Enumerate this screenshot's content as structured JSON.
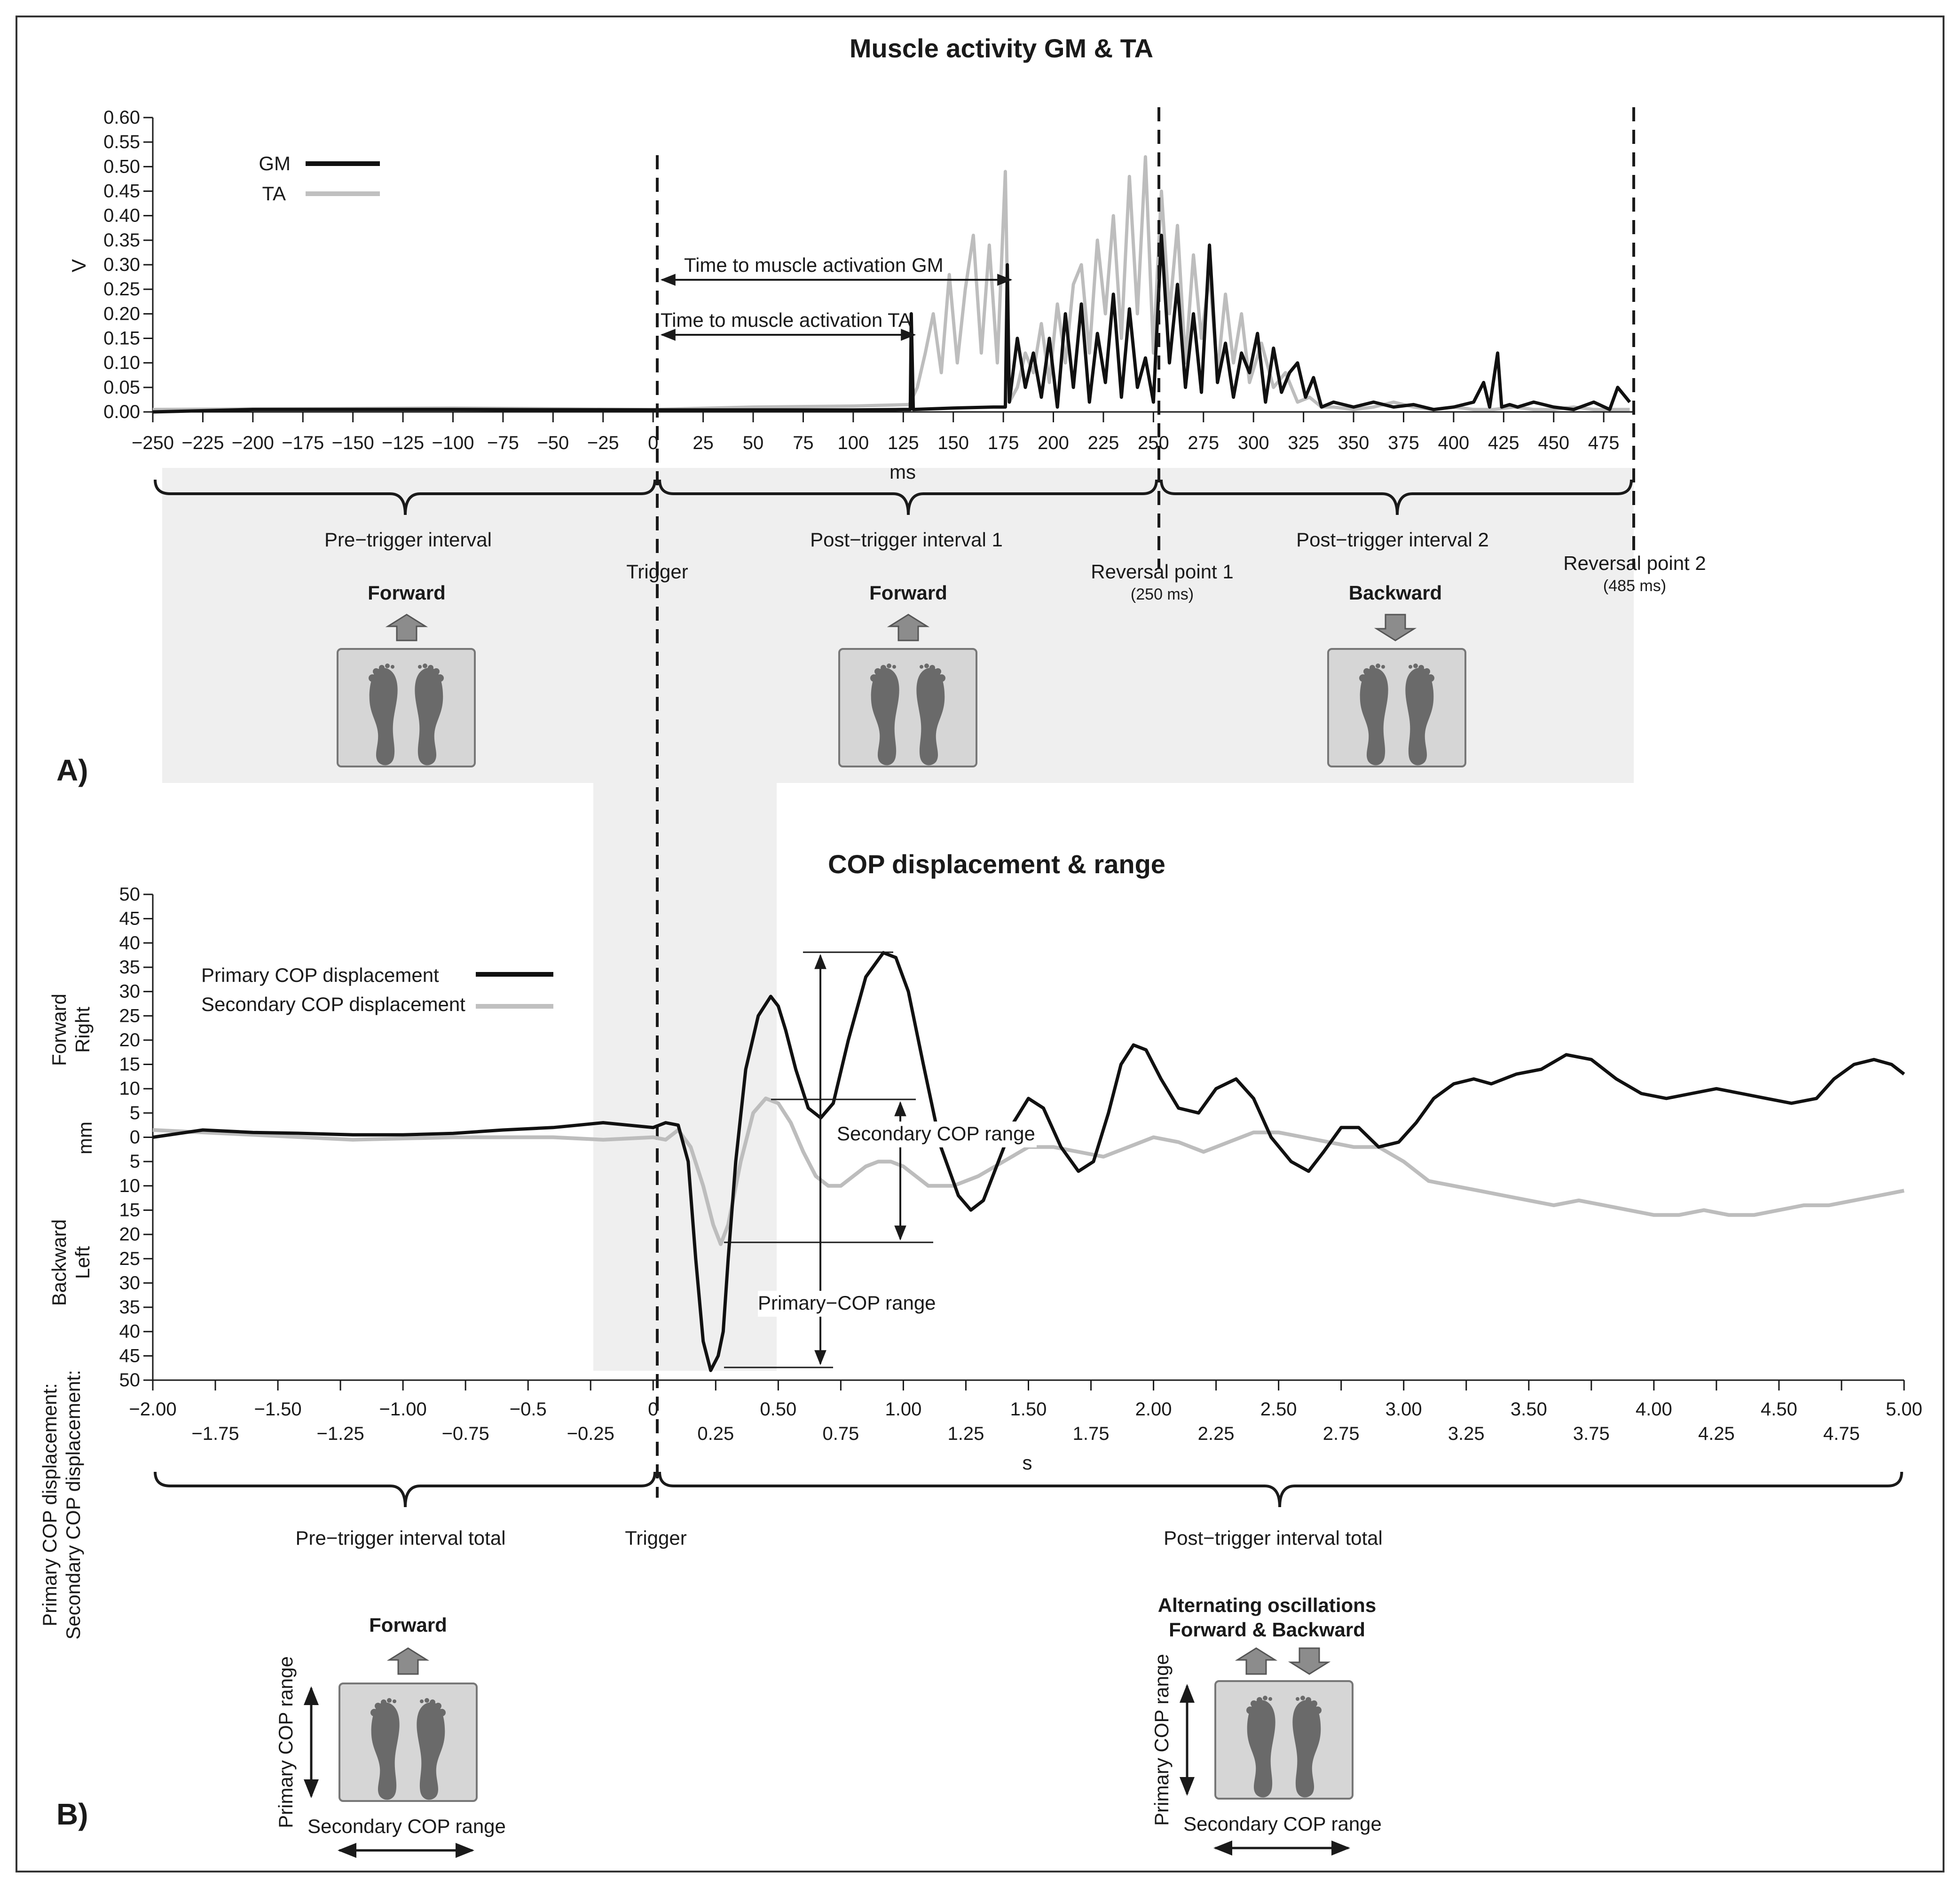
{
  "figure": {
    "panel_a_label": "A)",
    "panel_b_label": "B)"
  },
  "chart_data": [
    {
      "type": "line",
      "title": "Muscle activity GM & TA",
      "xlabel": "ms",
      "ylabel": "V",
      "xlim": [
        -250,
        490
      ],
      "ylim": [
        0,
        0.6
      ],
      "x_ticks": [
        "−250",
        "−225",
        "−200",
        "−175",
        "−150",
        "−125",
        "−100",
        "−75",
        "−50",
        "−25",
        "0",
        "25",
        "50",
        "75",
        "100",
        "125",
        "150",
        "175",
        "200",
        "225",
        "250",
        "275",
        "300",
        "325",
        "350",
        "375",
        "400",
        "425",
        "450",
        "475"
      ],
      "y_ticks": [
        "0.00",
        "0.05",
        "0.10",
        "0.15",
        "0.20",
        "0.25",
        "0.30",
        "0.35",
        "0.40",
        "0.45",
        "0.50",
        "0.55",
        "0.60"
      ],
      "legend": [
        {
          "name": "GM",
          "color": "#111111"
        },
        {
          "name": "TA",
          "color": "#c0c0c0"
        }
      ],
      "series": [
        {
          "name": "TA",
          "x": [
            -250,
            -100,
            0,
            50,
            100,
            128,
            132,
            136,
            140,
            144,
            148,
            152,
            156,
            160,
            164,
            168,
            172,
            176,
            178,
            182,
            186,
            190,
            194,
            198,
            202,
            206,
            210,
            214,
            218,
            222,
            226,
            230,
            234,
            238,
            242,
            246,
            250,
            254,
            258,
            262,
            266,
            270,
            274,
            278,
            282,
            286,
            290,
            294,
            298,
            304,
            310,
            316,
            322,
            328,
            334,
            340,
            350,
            360,
            370,
            380,
            390,
            400,
            410,
            420,
            430,
            440,
            450,
            460,
            470,
            480,
            488
          ],
          "values": [
            0.005,
            0.008,
            0.005,
            0.01,
            0.012,
            0.015,
            0.05,
            0.12,
            0.2,
            0.08,
            0.28,
            0.1,
            0.25,
            0.36,
            0.12,
            0.34,
            0.1,
            0.49,
            0.02,
            0.05,
            0.12,
            0.08,
            0.18,
            0.06,
            0.22,
            0.1,
            0.26,
            0.3,
            0.12,
            0.35,
            0.2,
            0.4,
            0.15,
            0.48,
            0.2,
            0.52,
            0.12,
            0.45,
            0.2,
            0.38,
            0.1,
            0.32,
            0.15,
            0.28,
            0.08,
            0.24,
            0.1,
            0.2,
            0.06,
            0.14,
            0.05,
            0.08,
            0.02,
            0.03,
            0.01,
            0.01,
            0.005,
            0.01,
            0.02,
            0.01,
            0.005,
            0.01,
            0.005,
            0.005,
            0.01,
            0.005,
            0.005,
            0.01,
            0.005,
            0.005,
            0.005
          ]
        },
        {
          "name": "GM",
          "x": [
            -250,
            -200,
            -100,
            0,
            100,
            125,
            128.5,
            129,
            130,
            150,
            170,
            176,
            177,
            178,
            182,
            186,
            190,
            194,
            198,
            202,
            206,
            210,
            214,
            218,
            222,
            226,
            230,
            234,
            238,
            242,
            246,
            250,
            254,
            258,
            262,
            266,
            270,
            274,
            278,
            282,
            286,
            290,
            294,
            298,
            302,
            306,
            310,
            314,
            318,
            322,
            326,
            330,
            334,
            340,
            350,
            360,
            370,
            380,
            390,
            400,
            410,
            415,
            418,
            422,
            424,
            428,
            432,
            440,
            450,
            460,
            470,
            478,
            482,
            488
          ],
          "values": [
            0.0,
            0.005,
            0.005,
            0.004,
            0.004,
            0.005,
            0.005,
            0.2,
            0.005,
            0.008,
            0.01,
            0.01,
            0.3,
            0.02,
            0.15,
            0.05,
            0.12,
            0.03,
            0.15,
            0.01,
            0.2,
            0.05,
            0.22,
            0.02,
            0.16,
            0.06,
            0.24,
            0.03,
            0.21,
            0.05,
            0.11,
            0.02,
            0.36,
            0.1,
            0.26,
            0.05,
            0.2,
            0.04,
            0.34,
            0.06,
            0.14,
            0.03,
            0.12,
            0.08,
            0.16,
            0.02,
            0.13,
            0.04,
            0.08,
            0.1,
            0.03,
            0.07,
            0.01,
            0.02,
            0.01,
            0.02,
            0.01,
            0.015,
            0.005,
            0.01,
            0.02,
            0.06,
            0.01,
            0.12,
            0.01,
            0.015,
            0.01,
            0.02,
            0.01,
            0.005,
            0.02,
            0.005,
            0.05,
            0.02
          ]
        }
      ],
      "annotations": {
        "time_gm": "Time to muscle activation GM",
        "time_ta": "Time to muscle activation TA",
        "trigger": "Trigger",
        "intervals": [
          "Pre−trigger interval",
          "Post−trigger interval 1",
          "Post−trigger interval 2"
        ],
        "reversal1": "Reversal point 1",
        "reversal1_ms": "(250 ms)",
        "reversal2": "Reversal point 2",
        "reversal2_ms": "(485 ms)",
        "directions": [
          "Forward",
          "Forward",
          "Backward"
        ]
      }
    },
    {
      "type": "line",
      "title": "COP displacement & range",
      "xlabel": "s",
      "ylabel": "mm",
      "xlim": [
        -2.0,
        5.0
      ],
      "ylim": [
        -50,
        50
      ],
      "x_ticks_upper": [
        "−2.00",
        "−1.50",
        "−1.00",
        "−0.5",
        "0",
        "0.50",
        "1.00",
        "1.50",
        "2.00",
        "2.50",
        "3.00",
        "3.50",
        "4.00",
        "4.50",
        "5.00"
      ],
      "x_ticks_lower": [
        "−1.75",
        "−1.25",
        "−0.75",
        "−0.25",
        "0.25",
        "0.75",
        "1.25",
        "1.75",
        "2.25",
        "2.75",
        "3.25",
        "3.75",
        "4.25",
        "4.75"
      ],
      "y_ticks": [
        "50",
        "45",
        "40",
        "35",
        "30",
        "25",
        "20",
        "15",
        "10",
        "5",
        "0",
        "5",
        "10",
        "15",
        "20",
        "25",
        "30",
        "35",
        "40",
        "45",
        "50"
      ],
      "ylabel_top": [
        "Forward",
        "Right"
      ],
      "ylabel_bottom": [
        "Backward",
        "Left"
      ],
      "left_axis_label": [
        "Primary COP displacement:",
        "Secondary COP displacement:"
      ],
      "legend": [
        {
          "name": "Primary COP displacement",
          "color": "#111111"
        },
        {
          "name": "Secondary COP displacement",
          "color": "#c0c0c0"
        }
      ],
      "series": [
        {
          "name": "Primary COP displacement",
          "x": [
            -2.0,
            -1.8,
            -1.6,
            -1.4,
            -1.2,
            -1.0,
            -0.8,
            -0.6,
            -0.4,
            -0.3,
            -0.2,
            -0.1,
            0.0,
            0.05,
            0.1,
            0.14,
            0.17,
            0.2,
            0.23,
            0.26,
            0.28,
            0.3,
            0.33,
            0.37,
            0.42,
            0.47,
            0.5,
            0.53,
            0.57,
            0.62,
            0.67,
            0.72,
            0.78,
            0.85,
            0.92,
            0.97,
            1.02,
            1.08,
            1.15,
            1.22,
            1.27,
            1.32,
            1.38,
            1.44,
            1.5,
            1.56,
            1.63,
            1.7,
            1.76,
            1.82,
            1.87,
            1.92,
            1.97,
            2.03,
            2.1,
            2.18,
            2.25,
            2.33,
            2.4,
            2.47,
            2.55,
            2.62,
            2.68,
            2.75,
            2.82,
            2.9,
            2.98,
            3.05,
            3.12,
            3.2,
            3.28,
            3.35,
            3.45,
            3.55,
            3.65,
            3.75,
            3.85,
            3.95,
            4.05,
            4.15,
            4.25,
            4.35,
            4.45,
            4.55,
            4.65,
            4.72,
            4.8,
            4.88,
            4.95,
            5.0
          ],
          "values": [
            0,
            1.5,
            1,
            0.8,
            0.5,
            0.5,
            0.8,
            1.5,
            2,
            2.5,
            3,
            2.5,
            2,
            3,
            2.5,
            -5,
            -25,
            -42,
            -48,
            -45,
            -40,
            -25,
            -5,
            14,
            25,
            29,
            27,
            22,
            14,
            6,
            4,
            7,
            20,
            33,
            38,
            37,
            30,
            15,
            -2,
            -12,
            -15,
            -13,
            -5,
            3,
            8,
            6,
            -2,
            -7,
            -5,
            5,
            15,
            19,
            18,
            12,
            6,
            5,
            10,
            12,
            8,
            0,
            -5,
            -7,
            -3,
            2,
            2,
            -2,
            -1,
            3,
            8,
            11,
            12,
            11,
            13,
            14,
            17,
            16,
            12,
            9,
            8,
            9,
            10,
            9,
            8,
            7,
            8,
            12,
            15,
            16,
            15,
            13
          ]
        },
        {
          "name": "Secondary COP displacement",
          "x": [
            -2.0,
            -1.6,
            -1.2,
            -0.8,
            -0.4,
            -0.2,
            0.0,
            0.05,
            0.1,
            0.15,
            0.2,
            0.24,
            0.27,
            0.3,
            0.35,
            0.4,
            0.45,
            0.5,
            0.55,
            0.6,
            0.65,
            0.7,
            0.75,
            0.8,
            0.85,
            0.9,
            0.95,
            1.0,
            1.05,
            1.1,
            1.2,
            1.3,
            1.4,
            1.5,
            1.6,
            1.7,
            1.8,
            1.9,
            2.0,
            2.1,
            2.2,
            2.3,
            2.4,
            2.5,
            2.6,
            2.7,
            2.8,
            2.9,
            3.0,
            3.1,
            3.2,
            3.3,
            3.4,
            3.5,
            3.6,
            3.7,
            3.8,
            3.9,
            4.0,
            4.1,
            4.2,
            4.3,
            4.4,
            4.5,
            4.6,
            4.7,
            4.8,
            4.9,
            5.0
          ],
          "values": [
            1.5,
            0.5,
            -0.5,
            0,
            0,
            -0.5,
            0,
            -0.5,
            1.5,
            -2,
            -10,
            -18,
            -22,
            -18,
            -5,
            5,
            8,
            7,
            3,
            -3,
            -8,
            -10,
            -10,
            -8,
            -6,
            -5,
            -5,
            -6,
            -8,
            -10,
            -10,
            -8,
            -5,
            -2,
            -2,
            -3,
            -4,
            -2,
            0,
            -1,
            -3,
            -1,
            1,
            1,
            0,
            -1,
            -2,
            -2,
            -5,
            -9,
            -10,
            -11,
            -12,
            -13,
            -14,
            -13,
            -14,
            -15,
            -16,
            -16,
            -15,
            -16,
            -16,
            -15,
            -14,
            -14,
            -13,
            -12,
            -11
          ]
        }
      ],
      "annotations": {
        "secondary_range": "Secondary COP range",
        "primary_range": "Primary−COP range",
        "trigger": "Trigger",
        "intervals": [
          "Pre−trigger interval total",
          "Post−trigger interval total"
        ],
        "pre_direction": "Forward",
        "post_direction_1": "Alternating oscillations",
        "post_direction_2": "Forward & Backward",
        "primary_range_label": "Primary COP range",
        "secondary_range_label": "Secondary COP range"
      }
    }
  ]
}
